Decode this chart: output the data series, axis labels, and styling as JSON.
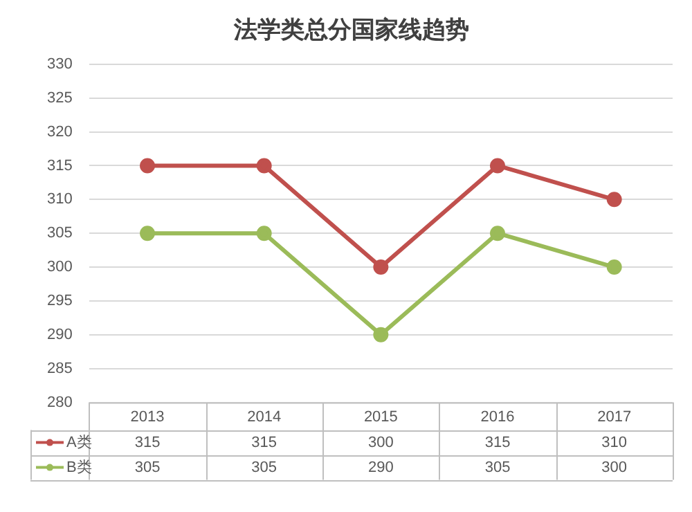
{
  "chart_data": {
    "type": "line",
    "title": "法学类总分国家线趋势",
    "categories": [
      "2013",
      "2014",
      "2015",
      "2016",
      "2017"
    ],
    "series": [
      {
        "name": "A类",
        "color": "#c0504d",
        "values": [
          315,
          315,
          300,
          315,
          310
        ]
      },
      {
        "name": "B类",
        "color": "#9bbb59",
        "values": [
          305,
          305,
          290,
          305,
          300
        ]
      }
    ],
    "ylim": [
      280,
      330
    ],
    "yticks": [
      280,
      285,
      290,
      295,
      300,
      305,
      310,
      315,
      320,
      325,
      330
    ],
    "grid": "y",
    "legend": "bottom left",
    "marker": "circle",
    "data_labels": true
  }
}
